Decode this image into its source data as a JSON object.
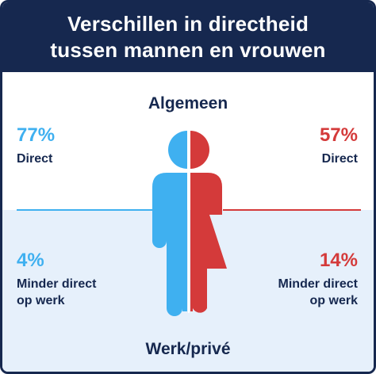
{
  "title_line1": "Verschillen in directheid",
  "title_line2": "tussen mannen en vrouwen",
  "colors": {
    "navy": "#16284f",
    "men": "#3fb0f0",
    "women": "#d43a3a",
    "light_bg": "#e6f0fb"
  },
  "chart_data": {
    "type": "table",
    "title": "Verschillen in directheid tussen mannen en vrouwen",
    "groups": [
      {
        "label": "Algemeen",
        "left": {
          "value": 77,
          "display": "77%",
          "label": "Direct"
        },
        "right": {
          "value": 57,
          "display": "57%",
          "label": "Direct"
        }
      },
      {
        "label": "Werk/privé",
        "left": {
          "value": 4,
          "display": "4%",
          "label_lines": [
            "Minder direct",
            "op werk"
          ]
        },
        "right": {
          "value": 14,
          "display": "14%",
          "label_lines": [
            "Minder direct",
            "op werk"
          ]
        }
      }
    ]
  }
}
